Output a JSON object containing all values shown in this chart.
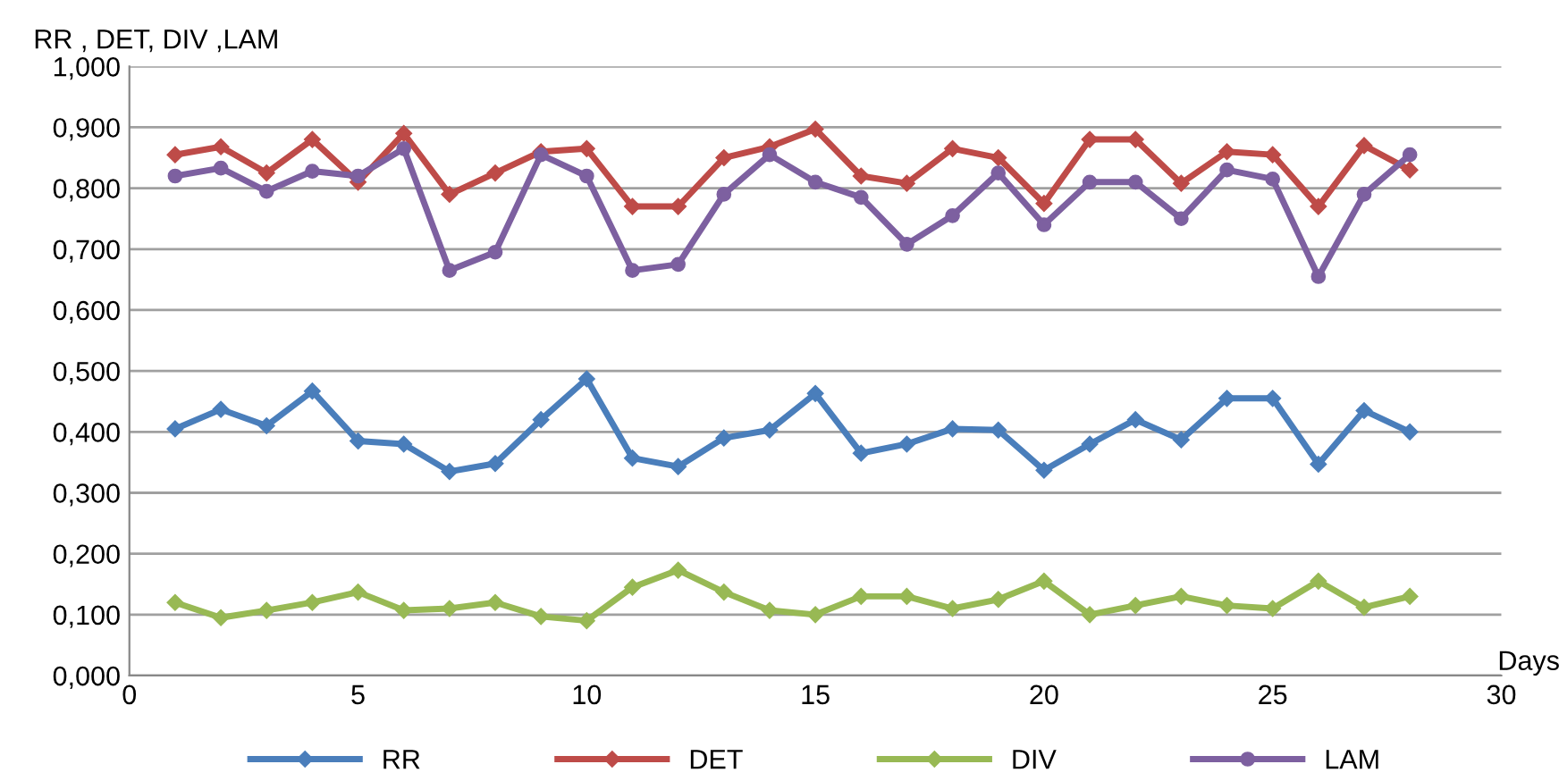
{
  "chart_data": {
    "type": "line",
    "xlabel": "Days",
    "ylabel": "RR , DET, DIV ,LAM",
    "x": [
      1,
      2,
      3,
      4,
      5,
      6,
      7,
      8,
      9,
      10,
      11,
      12,
      13,
      14,
      15,
      16,
      17,
      18,
      19,
      20,
      21,
      22,
      23,
      24,
      25,
      26,
      27,
      28
    ],
    "series": [
      {
        "name": "RR",
        "color": "#4a7ebb",
        "marker": "diamond",
        "values": [
          0.405,
          0.437,
          0.41,
          0.467,
          0.385,
          0.38,
          0.335,
          0.348,
          0.42,
          0.487,
          0.357,
          0.343,
          0.39,
          0.403,
          0.463,
          0.365,
          0.38,
          0.405,
          0.403,
          0.337,
          0.38,
          0.42,
          0.387,
          0.455,
          0.455,
          0.347,
          0.435,
          0.4
        ]
      },
      {
        "name": "DET",
        "color": "#be4b48",
        "marker": "diamond",
        "values": [
          0.855,
          0.868,
          0.825,
          0.88,
          0.81,
          0.89,
          0.79,
          0.825,
          0.86,
          0.865,
          0.77,
          0.77,
          0.85,
          0.868,
          0.897,
          0.82,
          0.808,
          0.865,
          0.85,
          0.775,
          0.88,
          0.88,
          0.808,
          0.86,
          0.855,
          0.77,
          0.87,
          0.83
        ]
      },
      {
        "name": "DIV",
        "color": "#98b954",
        "marker": "diamond",
        "values": [
          0.12,
          0.095,
          0.107,
          0.12,
          0.137,
          0.107,
          0.11,
          0.12,
          0.097,
          0.09,
          0.145,
          0.173,
          0.137,
          0.107,
          0.1,
          0.13,
          0.13,
          0.11,
          0.125,
          0.155,
          0.1,
          0.115,
          0.13,
          0.115,
          0.11,
          0.155,
          0.112,
          0.13
        ]
      },
      {
        "name": "LAM",
        "color": "#7d60a0",
        "marker": "circle",
        "values": [
          0.82,
          0.833,
          0.795,
          0.828,
          0.82,
          0.865,
          0.665,
          0.695,
          0.855,
          0.82,
          0.665,
          0.675,
          0.79,
          0.855,
          0.81,
          0.785,
          0.708,
          0.755,
          0.825,
          0.74,
          0.81,
          0.81,
          0.75,
          0.83,
          0.815,
          0.655,
          0.79,
          0.855
        ]
      }
    ],
    "xlim": [
      0,
      30
    ],
    "xticks": [
      0,
      5,
      10,
      15,
      20,
      25,
      30
    ],
    "ylim": [
      0,
      1
    ],
    "yticks": [
      {
        "value": 0,
        "label": "0,000"
      },
      {
        "value": 0.1,
        "label": "0,100"
      },
      {
        "value": 0.2,
        "label": "0,200"
      },
      {
        "value": 0.3,
        "label": "0,300"
      },
      {
        "value": 0.4,
        "label": "0,400"
      },
      {
        "value": 0.5,
        "label": "0,500"
      },
      {
        "value": 0.6,
        "label": "0,600"
      },
      {
        "value": 0.7,
        "label": "0,700"
      },
      {
        "value": 0.8,
        "label": "0,800"
      },
      {
        "value": 0.9,
        "label": "0,900"
      },
      {
        "value": 1,
        "label": "1,000"
      }
    ],
    "grid": "y",
    "legend": "bottom",
    "line_style": "solid"
  }
}
